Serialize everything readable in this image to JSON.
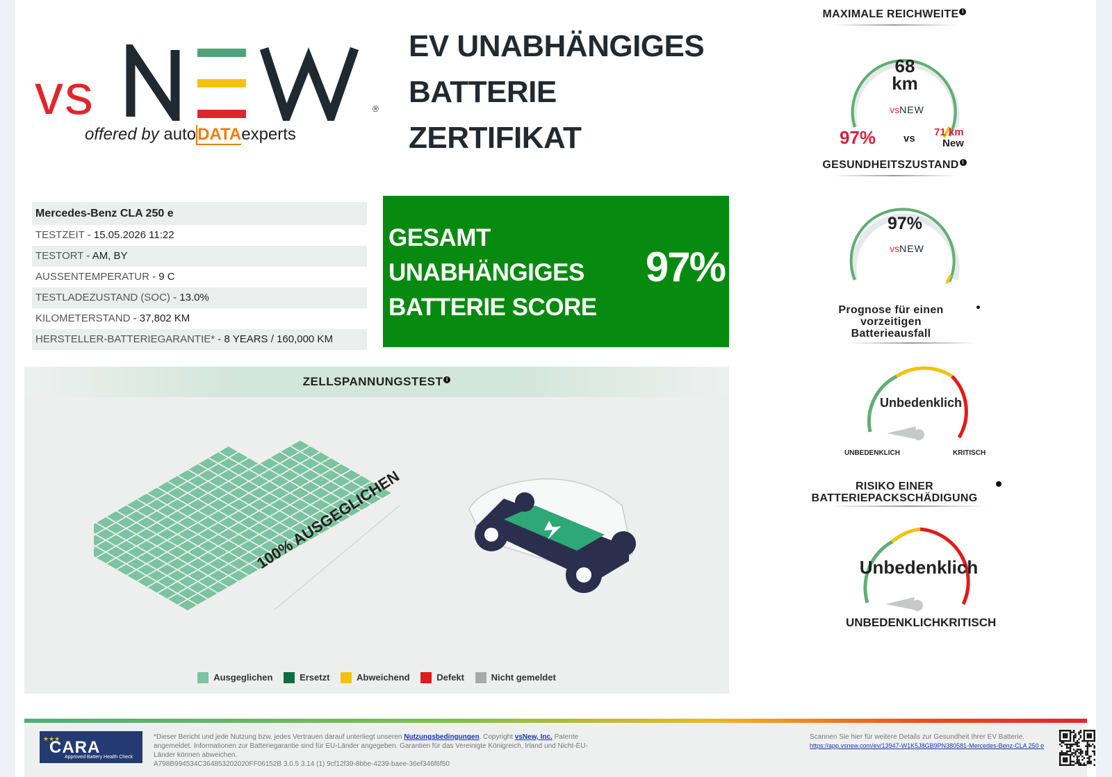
{
  "logo": {
    "vs": "vs",
    "new": "NEW",
    "registered": "®",
    "offered_by": "offered by",
    "auto": "auto",
    "data": "DATA",
    "experts": "experts"
  },
  "title": {
    "line1": "EV UNABHÄNGIGES",
    "line2": "BATTERIE",
    "line3": "ZERTIFIKAT"
  },
  "vehicle": {
    "name": "Mercedes-Benz CLA 250 e",
    "rows": [
      {
        "label": "TESTZEIT",
        "value": "15.05.2026 11:22"
      },
      {
        "label": "TESTORT",
        "value": "AM, BY"
      },
      {
        "label": "AUSSENTEMPERATUR",
        "value": "9 C"
      },
      {
        "label": "TESTLADEZUSTAND (SOC)",
        "value": "13.0%"
      },
      {
        "label": "KILOMETERSTAND",
        "value": "37,802 KM"
      },
      {
        "label": "HERSTELLER-BATTERIEGARANTIE*",
        "value": "8 YEARS / 160,000 KM"
      }
    ]
  },
  "score": {
    "line1": "GESAMT",
    "line2": "UNABHÄNGIGES",
    "line3": "BATTERIE SCORE",
    "value": "97%"
  },
  "cell_test": {
    "title": "ZELLSPANNUNGSTEST",
    "balanced_label": "100% AUSGEGLICHEN",
    "legend": [
      {
        "label": "Ausgeglichen",
        "color": "#7cc3a0"
      },
      {
        "label": "Ersetzt",
        "color": "#0e6b46"
      },
      {
        "label": "Abweichend",
        "color": "#f4c20d"
      },
      {
        "label": "Defekt",
        "color": "#e01b1b"
      },
      {
        "label": "Nicht gemeldet",
        "color": "#a9a9a9"
      }
    ]
  },
  "range": {
    "title": "MAXIMALE REICHWEITE",
    "value": "68",
    "unit": "km",
    "percent": "97%",
    "vs": "vs",
    "new_value": "71 km",
    "new_label": "New"
  },
  "health": {
    "title": "GESUNDHEITSZUSTAND",
    "value": "97%"
  },
  "failure": {
    "title_l1": "Prognose für einen",
    "title_l2": "vorzeitigen",
    "title_l3": "Batterieausfall",
    "value": "Unbedenklich",
    "left": "UNBEDENKLICH",
    "right": "KRITISCH"
  },
  "pack": {
    "title_l1": "RISIKO EINER",
    "title_l2": "BATTERIEPACKSCHÄDIGUNG",
    "value": "Unbedenklich",
    "left": "UNBEDENKLICH",
    "right": "KRITISCH"
  },
  "footer": {
    "cara": "CARA",
    "cara_sub": "Approved Battery Health Check",
    "disclaimer_a": "*Dieser Bericht und jede Nutzung bzw. jedes Vertrauen darauf unterliegt unseren",
    "terms_link": "Nutzungsbedingungen",
    "copyright": ". Copyright",
    "company_link": "vsNew, Inc.",
    "patents": "Patente",
    "disclaimer_b": "angemeldet. Informationen zur Batteriegarantie sind für EU-Länder angegeben. Garantien für das Vereinigte Königreich, Irland und Nicht-EU-",
    "disclaimer_c": "Länder können abweichen.",
    "hash": "A798B994534C364853202020FF06152B 3.0.5 3.14 (1) 9cf12f39-8bbe-4239-baee-36ef346f6f50",
    "scan_text": "Scannen Sie hier für weitere Details zur Gesundheit Ihrer EV Batterie.",
    "scan_link": "https://app.vsnew.com/ev/13947-W1K5J8GB9PN380581-Mercedes-Benz-CLA 250 e"
  }
}
